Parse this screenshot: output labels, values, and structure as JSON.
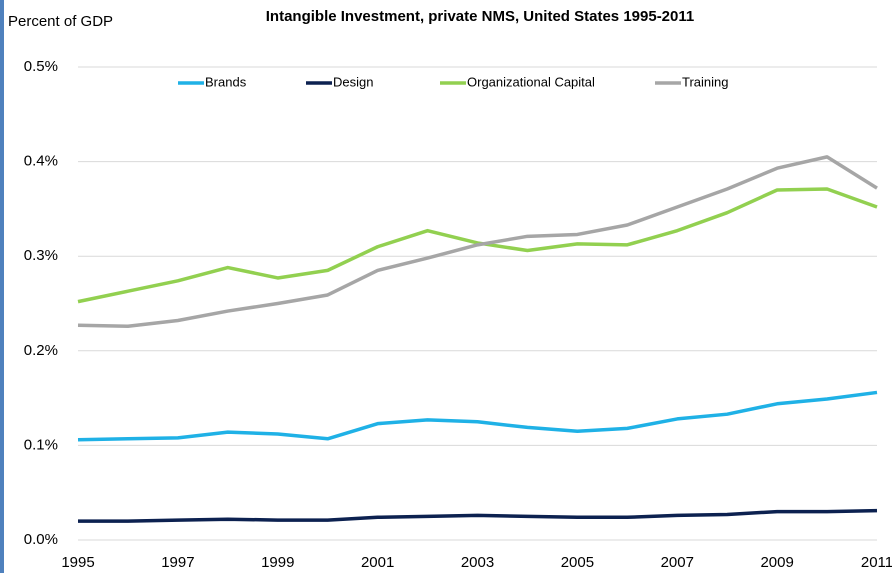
{
  "chart_data": {
    "type": "line",
    "title": "Intangible Investment, private NMS, United States 1995-2011",
    "y_label": "Percent of GDP",
    "x": [
      1995,
      1996,
      1997,
      1998,
      1999,
      2000,
      2001,
      2002,
      2003,
      2004,
      2005,
      2006,
      2007,
      2008,
      2009,
      2010,
      2011
    ],
    "xlim": [
      1995,
      2011
    ],
    "xticks": [
      1995,
      1997,
      1999,
      2001,
      2003,
      2005,
      2007,
      2009,
      2011
    ],
    "ylim": [
      0,
      0.5
    ],
    "yticks": [
      {
        "value": 0,
        "label": "0.0%"
      },
      {
        "value": 0.1,
        "label": "0.1%"
      },
      {
        "value": 0.2,
        "label": "0.2%"
      },
      {
        "value": 0.3,
        "label": "0.3%"
      },
      {
        "value": 0.4,
        "label": "0.4%"
      },
      {
        "value": 0.5,
        "label": "0.5%"
      }
    ],
    "grid": true,
    "legend": "top",
    "series": [
      {
        "name": "Brands",
        "color": "#1fb1e6",
        "values": [
          0.106,
          0.107,
          0.108,
          0.114,
          0.112,
          0.107,
          0.123,
          0.127,
          0.125,
          0.119,
          0.115,
          0.118,
          0.128,
          0.133,
          0.144,
          0.149,
          0.156
        ]
      },
      {
        "name": "Design",
        "color": "#0c2150",
        "values": [
          0.02,
          0.02,
          0.021,
          0.022,
          0.021,
          0.021,
          0.024,
          0.025,
          0.026,
          0.025,
          0.024,
          0.024,
          0.026,
          0.027,
          0.03,
          0.03,
          0.031
        ]
      },
      {
        "name": "Organizational Capital",
        "color": "#92d050",
        "values": [
          0.252,
          0.263,
          0.274,
          0.288,
          0.277,
          0.285,
          0.31,
          0.327,
          0.314,
          0.306,
          0.313,
          0.312,
          0.327,
          0.346,
          0.37,
          0.371,
          0.352
        ]
      },
      {
        "name": "Training",
        "color": "#a6a6a6",
        "values": [
          0.227,
          0.226,
          0.232,
          0.242,
          0.25,
          0.259,
          0.285,
          0.298,
          0.312,
          0.321,
          0.323,
          0.333,
          0.352,
          0.371,
          0.393,
          0.405,
          0.372
        ]
      }
    ]
  }
}
